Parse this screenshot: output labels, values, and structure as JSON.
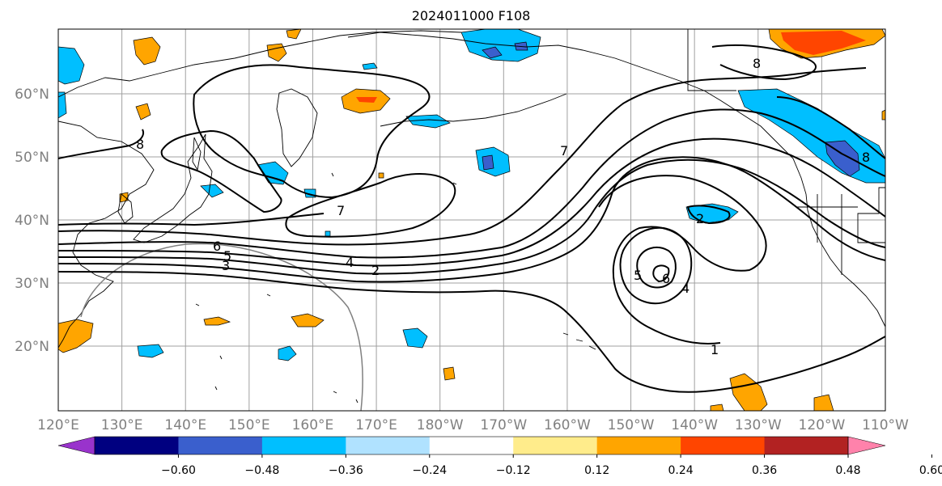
{
  "title": "2024011000 F108",
  "map": {
    "lon_labels": [
      "120°E",
      "130°E",
      "140°E",
      "150°E",
      "160°E",
      "170°E",
      "180°W",
      "170°W",
      "160°W",
      "150°W",
      "140°W",
      "130°W",
      "120°W",
      "110°W"
    ],
    "lat_labels": [
      "20°N",
      "30°N",
      "40°N",
      "50°N",
      "60°N"
    ],
    "contour_labels": [
      {
        "text": "8"
      },
      {
        "text": "7"
      },
      {
        "text": "7"
      },
      {
        "text": "6"
      },
      {
        "text": "5"
      },
      {
        "text": "3"
      },
      {
        "text": "4"
      },
      {
        "text": "2"
      },
      {
        "text": "2"
      },
      {
        "text": "5"
      },
      {
        "text": "6"
      },
      {
        "text": "4"
      },
      {
        "text": "1"
      },
      {
        "text": "8"
      },
      {
        "text": "8"
      }
    ]
  },
  "colorbar": {
    "colors": [
      "#9933cc",
      "#000080",
      "#3a5fcd",
      "#00bfff",
      "#b0e2ff",
      "#ffffff",
      "#ffec8b",
      "#ffa500",
      "#ff4500",
      "#b22222",
      "#ff82ab"
    ],
    "tick_labels": [
      "−0.60",
      "−0.48",
      "−0.36",
      "−0.24",
      "−0.12",
      "0.12",
      "0.24",
      "0.36",
      "0.48",
      "0.60"
    ]
  }
}
